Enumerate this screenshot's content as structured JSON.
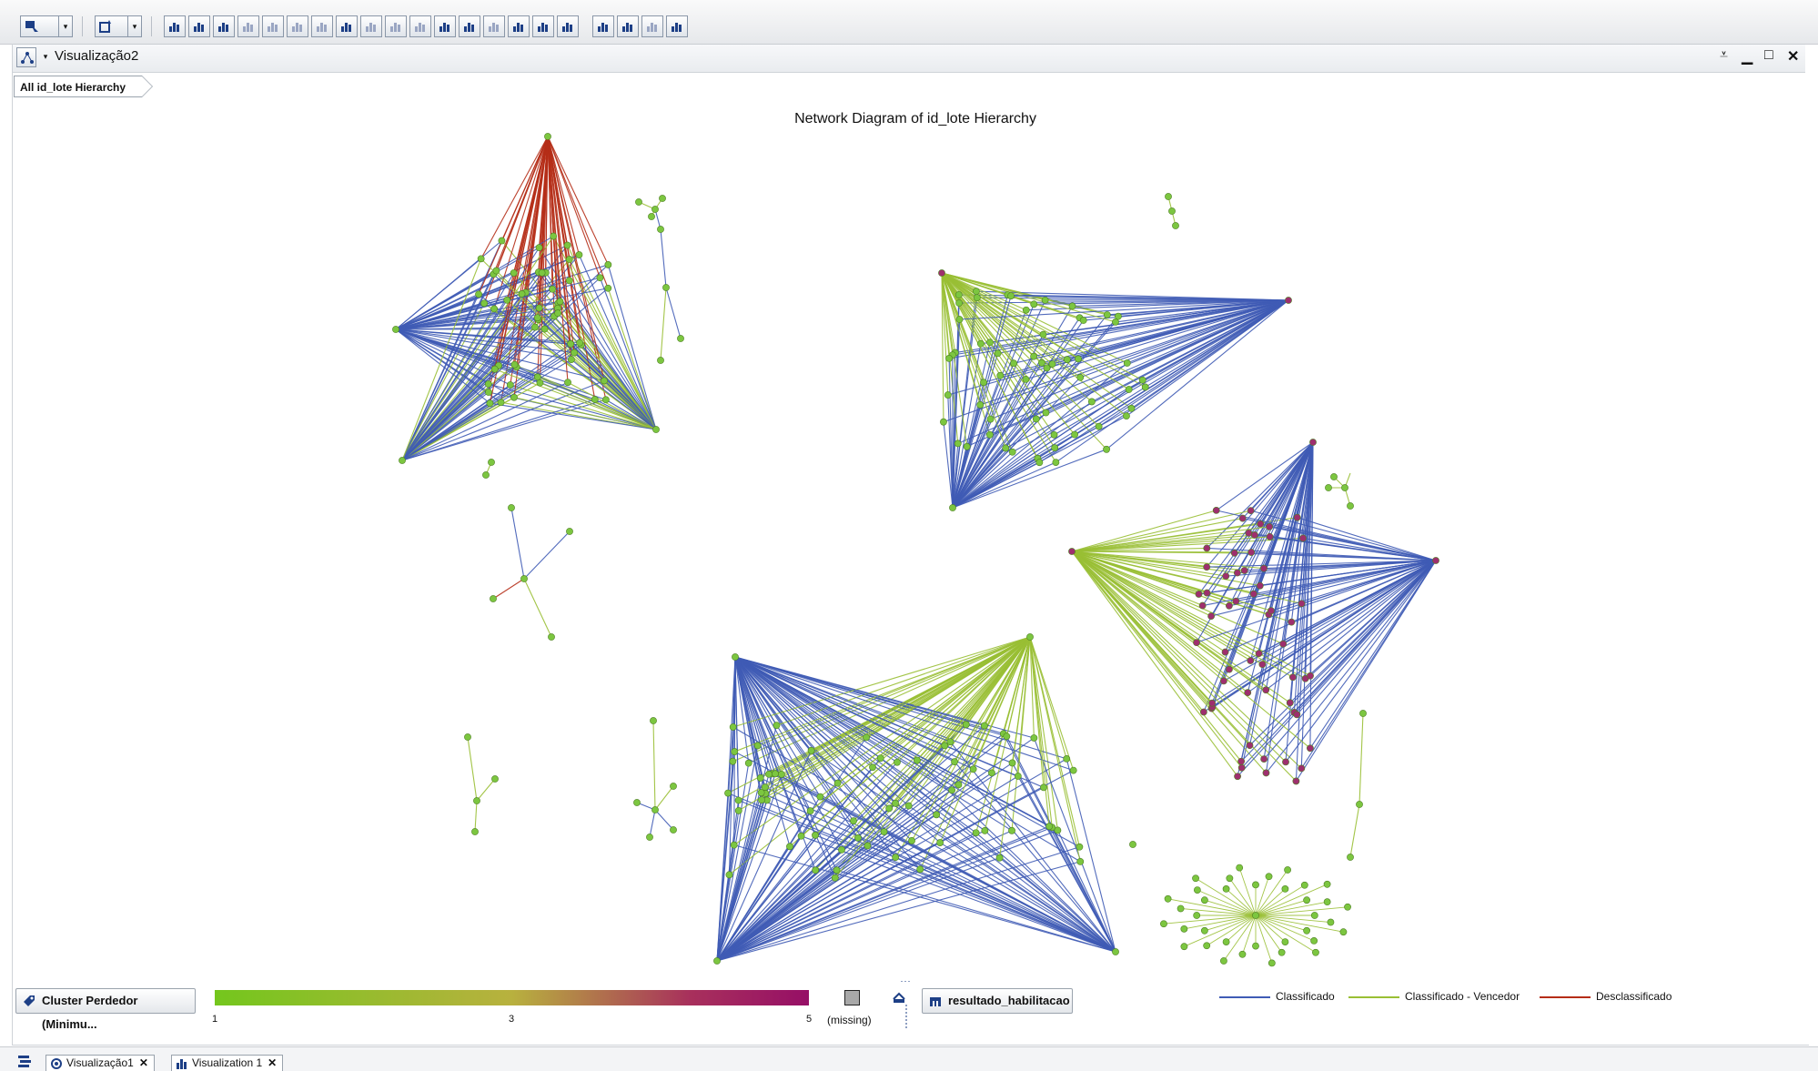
{
  "toolbar": {
    "buttons": [
      "select-tool-icon",
      "new-visualization-icon",
      "bar-chart-icon",
      "table-icon",
      "crosstab-icon",
      "histogram-icon",
      "line-chart-icon",
      "scatter-plot-icon",
      "bubble-plot-icon",
      "network-diagram-icon",
      "parallel-coordinates-icon",
      "box-plot-icon",
      "heat-map-icon",
      "geo-map-icon",
      "treemap-icon",
      "correlation-matrix-icon",
      "forecast-icon",
      "decision-tree-icon",
      "regression-icon",
      "generalized-linear-icon",
      "cluster-icon",
      "logistic-icon",
      "export-icon"
    ]
  },
  "visualization": {
    "title": "Visualização2",
    "breadcrumb": "All id_lote Hierarchy",
    "chart_title": "Network Diagram of id_lote Hierarchy"
  },
  "legend": {
    "color_button": "Cluster Perdedor (Minimu...",
    "gradient_ticks": [
      "1",
      "3",
      "5"
    ],
    "missing_label": "(missing)",
    "link_button": "resultado_habilitacao",
    "link_types": [
      {
        "label": "Classificado",
        "color": "#3f5bb5"
      },
      {
        "label": "Classificado - Vencedor",
        "color": "#99bf34"
      },
      {
        "label": "Desclassificado",
        "color": "#b52d17"
      }
    ]
  },
  "colors": {
    "node_low": "#7cc640",
    "node_high": "#9e2f6e",
    "blue": "#3f5bb5",
    "green": "#99bf34",
    "red": "#b52d17"
  },
  "tabs": [
    {
      "label": "Visualização1",
      "icon": "network-diagram-icon"
    },
    {
      "label": "Visualization 1",
      "icon": "bar-chart-icon"
    }
  ]
}
